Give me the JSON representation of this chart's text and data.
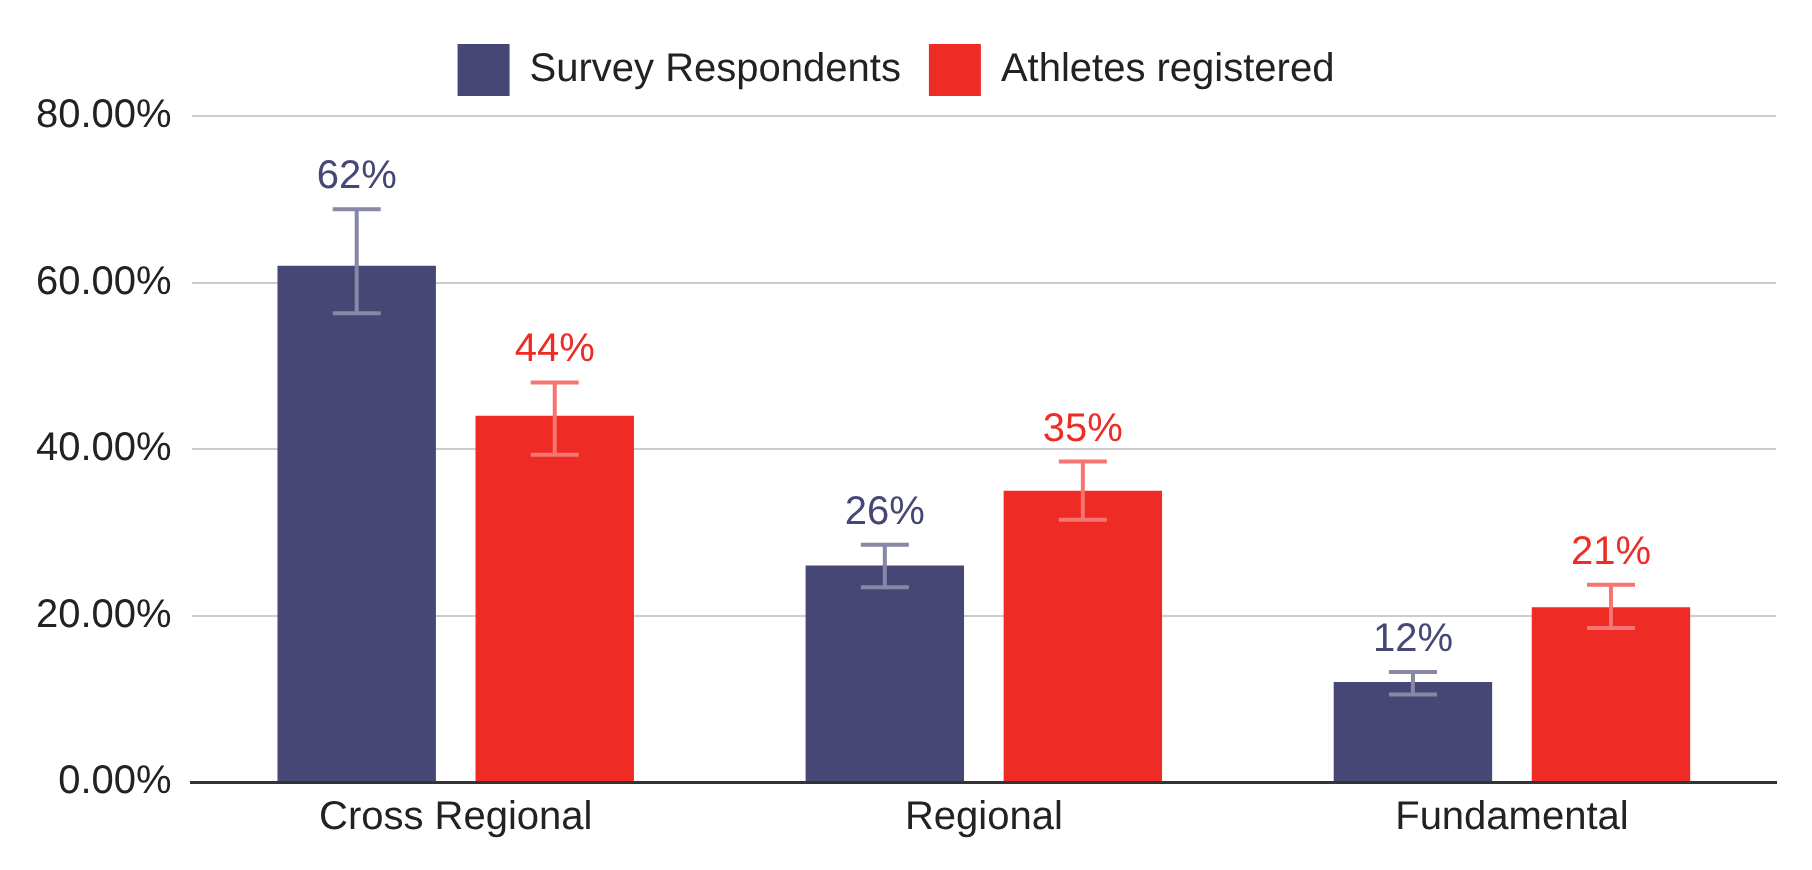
{
  "chart_data": {
    "type": "bar",
    "categories": [
      "Cross Regional",
      "Regional",
      "Fundamental"
    ],
    "series": [
      {
        "name": "Survey Respondents",
        "color": "#474776",
        "values": [
          62,
          26,
          12
        ],
        "value_labels": [
          "62%",
          "26%",
          "12%"
        ],
        "errors": [
          [
            56.3,
            68.8
          ],
          [
            23.4,
            28.5
          ],
          [
            10.5,
            13.2
          ]
        ]
      },
      {
        "name": "Athletes registered",
        "color": "#ee2b24",
        "values": [
          44,
          35,
          21
        ],
        "value_labels": [
          "44%",
          "35%",
          "21%"
        ],
        "errors": [
          [
            39.3,
            48
          ],
          [
            31.5,
            38.5
          ],
          [
            18.5,
            23.7
          ]
        ]
      }
    ],
    "ylim": [
      0,
      80
    ],
    "yticks": [
      {
        "value": 0,
        "label": "0.00%"
      },
      {
        "value": 20,
        "label": "20.00%"
      },
      {
        "value": 40,
        "label": "40.00%"
      },
      {
        "value": 60,
        "label": "60.00%"
      },
      {
        "value": 80,
        "label": "80.00%"
      }
    ],
    "grid": "y",
    "legend": "top"
  }
}
